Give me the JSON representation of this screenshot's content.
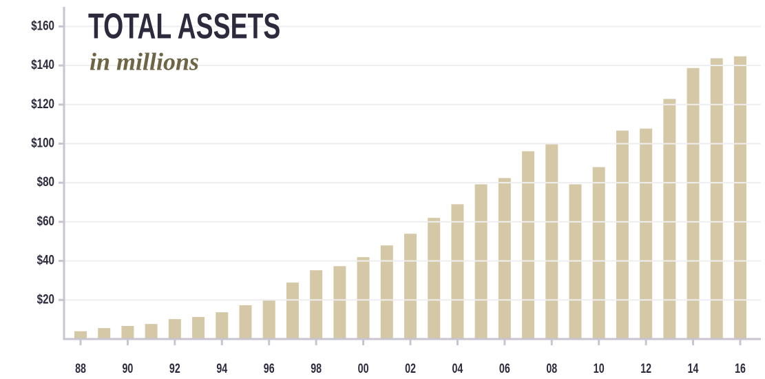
{
  "chart_data": {
    "type": "bar",
    "title": "TOTAL ASSETS",
    "subtitle": "in millions",
    "categories": [
      "88",
      null,
      "90",
      null,
      "92",
      null,
      "94",
      null,
      "96",
      null,
      "98",
      null,
      "00",
      null,
      "02",
      null,
      "04",
      null,
      "06",
      null,
      "08",
      null,
      "10",
      null,
      "12",
      null,
      "14",
      null,
      "16"
    ],
    "values": [
      4,
      5.6,
      6.7,
      7.7,
      10.2,
      11.3,
      13.7,
      17.3,
      19.7,
      28.9,
      35.2,
      37.3,
      41.9,
      47.9,
      53.9,
      62,
      69,
      79.2,
      82.4,
      96.1,
      99.6,
      79.2,
      88,
      106.7,
      107.7,
      122.9,
      138.7,
      143.7,
      144.7
    ],
    "color": "#d5c8a6",
    "ylim": [
      0,
      170
    ],
    "yticks": [
      {
        "value": 20,
        "label": "$20"
      },
      {
        "value": 40,
        "label": "$40"
      },
      {
        "value": 60,
        "label": "$60"
      },
      {
        "value": 80,
        "label": "$80"
      },
      {
        "value": 100,
        "label": "$100"
      },
      {
        "value": 120,
        "label": "$120"
      },
      {
        "value": 140,
        "label": "$140"
      },
      {
        "value": 160,
        "label": "$160"
      }
    ],
    "grid": true
  }
}
